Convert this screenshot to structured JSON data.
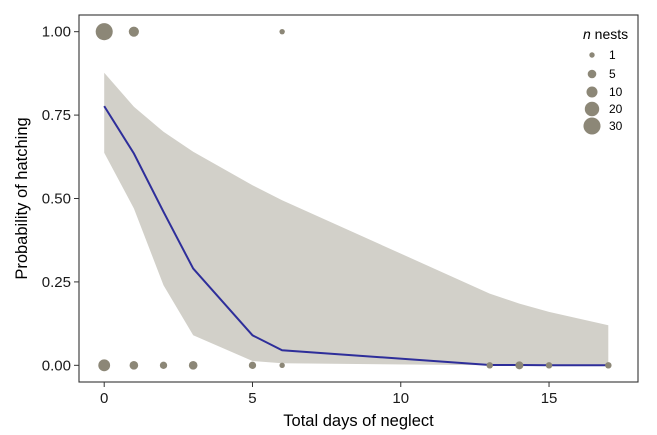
{
  "chart_data": {
    "type": "scatter",
    "title": "",
    "xlabel": "Total days of neglect",
    "ylabel": "Probability of hatching",
    "xlim": [
      -0.85,
      18.0
    ],
    "ylim": [
      -0.05,
      1.05
    ],
    "x_ticks": [
      0,
      5,
      10,
      15
    ],
    "x_tick_labels": [
      "0",
      "5",
      "10",
      "15"
    ],
    "y_ticks": [
      0,
      0.25,
      0.5,
      0.75,
      1
    ],
    "y_tick_labels": [
      "0.00",
      "0.25",
      "0.50",
      "0.75",
      "1.00"
    ],
    "grid": false,
    "legend_position": "top-right",
    "legend_title_italic": "n",
    "legend_title_rest": " nests",
    "legend": [
      {
        "label": "1",
        "n": 1
      },
      {
        "label": "5",
        "n": 5
      },
      {
        "label": "10",
        "n": 10
      },
      {
        "label": "20",
        "n": 20
      },
      {
        "label": "30",
        "n": 30
      }
    ],
    "colors": {
      "points": "#8c8777",
      "fit_line": "#2e2e9a",
      "ribbon": "#d2d0c9",
      "axis": "#333333"
    },
    "points": [
      {
        "x": 0,
        "y": 1,
        "n": 30
      },
      {
        "x": 1,
        "y": 1,
        "n": 8
      },
      {
        "x": 6,
        "y": 1,
        "n": 1
      },
      {
        "x": 0,
        "y": 0,
        "n": 12
      },
      {
        "x": 1,
        "y": 0,
        "n": 5
      },
      {
        "x": 2,
        "y": 0,
        "n": 3
      },
      {
        "x": 3,
        "y": 0,
        "n": 5
      },
      {
        "x": 5,
        "y": 0,
        "n": 3
      },
      {
        "x": 6,
        "y": 0,
        "n": 1
      },
      {
        "x": 13,
        "y": 0,
        "n": 2
      },
      {
        "x": 14,
        "y": 0,
        "n": 4
      },
      {
        "x": 15,
        "y": 0,
        "n": 2
      },
      {
        "x": 17,
        "y": 0,
        "n": 2
      }
    ],
    "fit": {
      "x": [
        0,
        1,
        2,
        3,
        5,
        6,
        13,
        14,
        15,
        17
      ],
      "y": [
        0.777,
        0.635,
        0.46,
        0.29,
        0.09,
        0.045,
        0.001,
        0.001,
        0.0005,
        0.0002
      ],
      "lower": [
        0.637,
        0.47,
        0.24,
        0.09,
        0.013,
        0.006,
        0.0002,
        0.0001,
        0.0001,
        0.0
      ],
      "upper": [
        0.877,
        0.775,
        0.7,
        0.64,
        0.54,
        0.495,
        0.215,
        0.185,
        0.16,
        0.12
      ]
    }
  }
}
